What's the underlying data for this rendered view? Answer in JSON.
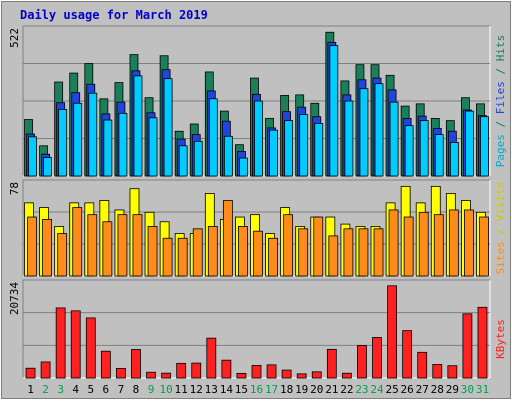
{
  "chart_data": {
    "type": "bar",
    "title": "Daily usage for March 2019",
    "categories": [
      "1",
      "2",
      "3",
      "4",
      "5",
      "6",
      "7",
      "8",
      "9",
      "10",
      "11",
      "12",
      "13",
      "14",
      "15",
      "16",
      "17",
      "18",
      "19",
      "20",
      "21",
      "22",
      "23",
      "24",
      "25",
      "26",
      "27",
      "28",
      "29",
      "30",
      "31"
    ],
    "weekend_days": [
      "2",
      "3",
      "9",
      "10",
      "16",
      "17",
      "23",
      "24",
      "30",
      "31"
    ],
    "panels": [
      {
        "id": "hits-files-pages",
        "max_label": "522",
        "ylim": [
          0,
          522
        ],
        "series": [
          {
            "name": "Hits",
            "color": "#1b7f5a",
            "values": [
              202,
              108,
              336,
              368,
              402,
              276,
              334,
              434,
              280,
              430,
              160,
              186,
              372,
              232,
              112,
              350,
              206,
              288,
              290,
              260,
              514,
              340,
              398,
              398,
              360,
              250,
              258,
              206,
              198,
              280,
              258
            ]
          },
          {
            "name": "Files",
            "color": "#2244dd",
            "values": [
              150,
              78,
              262,
              298,
              328,
              222,
              264,
              376,
              226,
              380,
              132,
              148,
              304,
              196,
              88,
              292,
              172,
              230,
              246,
              212,
              478,
              290,
              344,
              350,
              308,
              206,
              214,
              170,
              160,
              236,
              216
            ]
          },
          {
            "name": "Pages",
            "color": "#00ccff",
            "values": [
              140,
              66,
              238,
              260,
              296,
              200,
              224,
              358,
              208,
              348,
              108,
              124,
              276,
              142,
              64,
              268,
              164,
              198,
              220,
              188,
              466,
              268,
              312,
              330,
              264,
              180,
              198,
              148,
              120,
              232,
              212
            ]
          }
        ]
      },
      {
        "id": "visits-sites",
        "max_label": "78",
        "ylim": [
          0,
          78
        ],
        "series": [
          {
            "name": "Visits",
            "color": "#ffff00",
            "values": [
              62,
              58,
              42,
              62,
              62,
              64,
              56,
              74,
              54,
              46,
              36,
              36,
              70,
              48,
              50,
              52,
              36,
              58,
              42,
              50,
              50,
              44,
              42,
              42,
              62,
              76,
              62,
              76,
              70,
              64,
              54
            ]
          },
          {
            "name": "Sites",
            "color": "#ff8c1a",
            "values": [
              50,
              48,
              36,
              58,
              52,
              46,
              52,
              52,
              42,
              32,
              32,
              40,
              42,
              64,
              42,
              38,
              32,
              52,
              40,
              50,
              34,
              40,
              40,
              40,
              56,
              50,
              54,
              52,
              56,
              56,
              50
            ]
          }
        ]
      },
      {
        "id": "kbytes",
        "max_label": "20734",
        "ylim": [
          0,
          20734
        ],
        "series": [
          {
            "name": "KBytes",
            "color": "#ff2020",
            "values": [
              2160,
              3540,
              15460,
              14820,
              13250,
              5910,
              2110,
              6290,
              1270,
              1070,
              3230,
              3290,
              8790,
              3930,
              1020,
              2780,
              2900,
              1750,
              920,
              1370,
              6320,
              1050,
              7180,
              8950,
              20340,
              10450,
              5670,
              2990,
              2710,
              14150,
              15600
            ]
          }
        ]
      }
    ],
    "right_label": {
      "parts": [
        {
          "text": "Pages",
          "color": "#00aacc"
        },
        {
          "text": " / ",
          "color": "#008866"
        },
        {
          "text": "Files",
          "color": "#2244dd"
        },
        {
          "text": " / ",
          "color": "#008866"
        },
        {
          "text": "Hits",
          "color": "#1b7f5a"
        }
      ],
      "parts2": [
        {
          "text": "Sites",
          "color": "#ff8c1a"
        },
        {
          "text": " / ",
          "color": "#cccc00"
        },
        {
          "text": "Visits",
          "color": "#cccc00"
        }
      ],
      "parts3": [
        {
          "text": "KBytes",
          "color": "#ff2020"
        }
      ]
    },
    "colors": {
      "background": "#c0c0c0",
      "panel": "#c0c0c0",
      "grid": "#808080",
      "title": "#0000cc",
      "weekday_label": "#000000",
      "weekend_label": "#00a050"
    }
  }
}
